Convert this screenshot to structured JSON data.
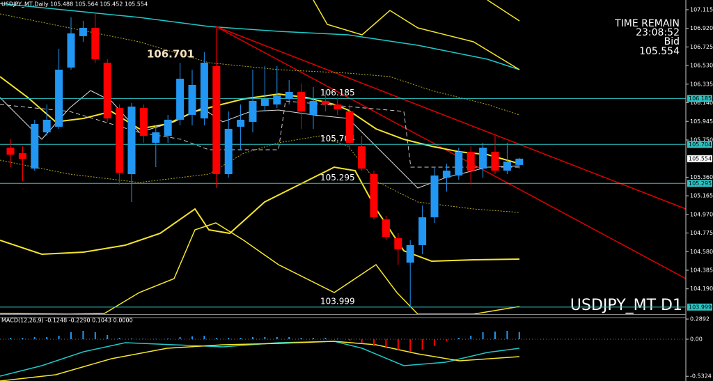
{
  "chart_data": [
    {
      "type": "candlestick",
      "title": "USDJPY_MT,Daily 105.488 105.564 105.452 105.554",
      "watermark": "USDJPY_MT D1",
      "info": [
        "TIME REMAIN",
        "23:08:52",
        "Bid",
        "105.554"
      ],
      "high_label": "106.701",
      "up_color": "#2196f3",
      "down_color": "#ff0000",
      "series": [
        {
          "name": "USDJPY_MT",
          "open": [
            105.67,
            105.611,
            105.451,
            105.83,
            105.889,
            106.509,
            106.838,
            106.925,
            106.56,
            106.086,
            105.392,
            106.086,
            105.721,
            105.794,
            105.962,
            106.013,
            105.976,
            106.524,
            105.392,
            105.889,
            105.94,
            106.108,
            106.122,
            106.181,
            106.254,
            106.013,
            106.159,
            106.122,
            106.049,
            105.684,
            105.392,
            104.918,
            104.721,
            104.465,
            104.648,
            104.94,
            105.356,
            105.378,
            105.626,
            105.451,
            105.626,
            105.429,
            105.488
          ],
          "high": [
            105.757,
            105.684,
            105.962,
            106.122,
            106.706,
            107.035,
            106.998,
            107.071,
            106.597,
            106.122,
            106.137,
            106.122,
            105.903,
            106.013,
            106.56,
            106.487,
            106.67,
            106.925,
            106.049,
            106.122,
            106.487,
            106.524,
            106.524,
            106.378,
            106.341,
            106.305,
            106.268,
            106.195,
            106.122,
            105.794,
            105.429,
            104.955,
            104.772,
            104.699,
            105.064,
            105.465,
            105.502,
            105.67,
            105.684,
            105.721,
            105.794,
            105.721,
            105.564
          ],
          "low": [
            105.465,
            105.319,
            105.429,
            105.794,
            105.867,
            106.487,
            106.779,
            106.56,
            105.94,
            105.283,
            105.1,
            105.721,
            105.465,
            105.721,
            105.903,
            105.903,
            105.903,
            105.246,
            105.356,
            105.648,
            105.83,
            106.049,
            106.086,
            106.122,
            105.867,
            105.867,
            106.049,
            106.013,
            105.648,
            105.429,
            104.918,
            104.699,
            104.443,
            103.999,
            104.553,
            104.881,
            105.21,
            105.334,
            105.283,
            105.356,
            105.392,
            105.392,
            105.452
          ],
          "close": [
            105.597,
            105.553,
            105.918,
            105.962,
            106.487,
            106.867,
            106.925,
            106.597,
            105.976,
            105.407,
            106.1,
            105.794,
            105.83,
            105.962,
            106.392,
            106.327,
            106.56,
            105.392,
            105.867,
            105.962,
            106.159,
            106.181,
            106.217,
            106.254,
            106.049,
            106.159,
            106.122,
            106.071,
            105.721,
            105.451,
            104.94,
            104.735,
            104.604,
            104.648,
            104.94,
            105.378,
            105.429,
            105.626,
            105.429,
            105.67,
            105.429,
            105.524,
            105.554
          ]
        }
      ],
      "ylim": [
        103.925,
        107.217
      ],
      "yticks": [
        {
          "value": 107.115,
          "label": "107.115"
        },
        {
          "value": 106.92,
          "label": "106.920"
        },
        {
          "value": 106.725,
          "label": "106.725"
        },
        {
          "value": 106.53,
          "label": "106.530"
        },
        {
          "value": 106.335,
          "label": "106.335"
        },
        {
          "value": 106.14,
          "label": "106.140"
        },
        {
          "value": 105.945,
          "label": "105.945"
        },
        {
          "value": 105.75,
          "label": "105.750"
        },
        {
          "value": 105.36,
          "label": "105.360"
        },
        {
          "value": 105.165,
          "label": "105.165"
        },
        {
          "value": 104.97,
          "label": "104.970"
        },
        {
          "value": 104.775,
          "label": "104.775"
        },
        {
          "value": 104.58,
          "label": "104.580"
        },
        {
          "value": 104.385,
          "label": "104.385"
        },
        {
          "value": 104.19,
          "label": "104.190"
        }
      ],
      "levels": [
        {
          "value": 106.185,
          "label": "106.185"
        },
        {
          "value": 105.704,
          "label": "105.704"
        },
        {
          "value": 105.295,
          "label": "105.295"
        },
        {
          "value": 103.999,
          "label": "103.999"
        }
      ],
      "bid": {
        "value": 105.554,
        "label": "105.554"
      }
    },
    {
      "type": "histogram-panel",
      "title": "MACD(12,26,9) -0.1248 -0.2290 0.1043 0.0000",
      "values": [
        0.02,
        0.02,
        0.03,
        0.03,
        0.05,
        0.1,
        0.12,
        0.1,
        0.06,
        0.02,
        0.01,
        0.005,
        0.005,
        0.01,
        0.03,
        0.04,
        0.05,
        0.02,
        0.02,
        0.02,
        0.03,
        0.03,
        0.03,
        0.03,
        0.02,
        0.02,
        0.02,
        0.01,
        -0.02,
        -0.05,
        -0.1,
        -0.13,
        -0.15,
        -0.18,
        -0.15,
        -0.1,
        -0.03,
        0.02,
        0.05,
        0.1,
        0.11,
        0.12,
        0.1043
      ],
      "up_color": "#2196f3",
      "down_color": "#ff0000",
      "ylim": [
        -0.6,
        0.35
      ],
      "yticks": [
        {
          "value": 0.2892,
          "label": "0.2892"
        },
        {
          "value": 0,
          "label": "0.00"
        },
        {
          "value": -0.5324,
          "label": "-0.5324"
        }
      ]
    }
  ]
}
